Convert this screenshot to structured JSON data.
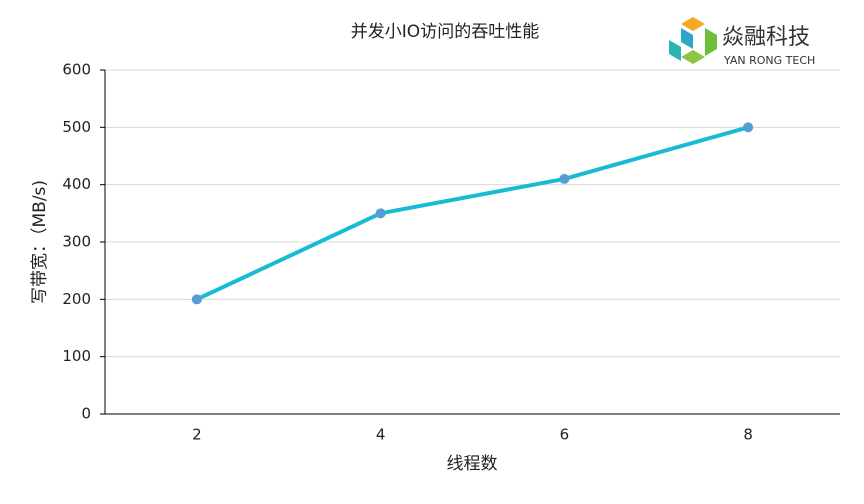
{
  "chart_data": {
    "type": "line",
    "title": "并发小IO访问的吞吐性能",
    "x_label": "线程数",
    "y_label": "写带宽：（MB/s)",
    "categories": [
      "2",
      "4",
      "6",
      "8"
    ],
    "values": [
      200,
      350,
      410,
      500
    ],
    "color": "#17bcd4",
    "marker_color": "#5b9bd5",
    "ylim": [
      0,
      600
    ],
    "yticks": [
      0,
      100,
      200,
      300,
      400,
      500,
      600
    ],
    "grid": true
  },
  "logo": {
    "name": "焱融科技",
    "subtitle": "YAN RONG TECH"
  }
}
